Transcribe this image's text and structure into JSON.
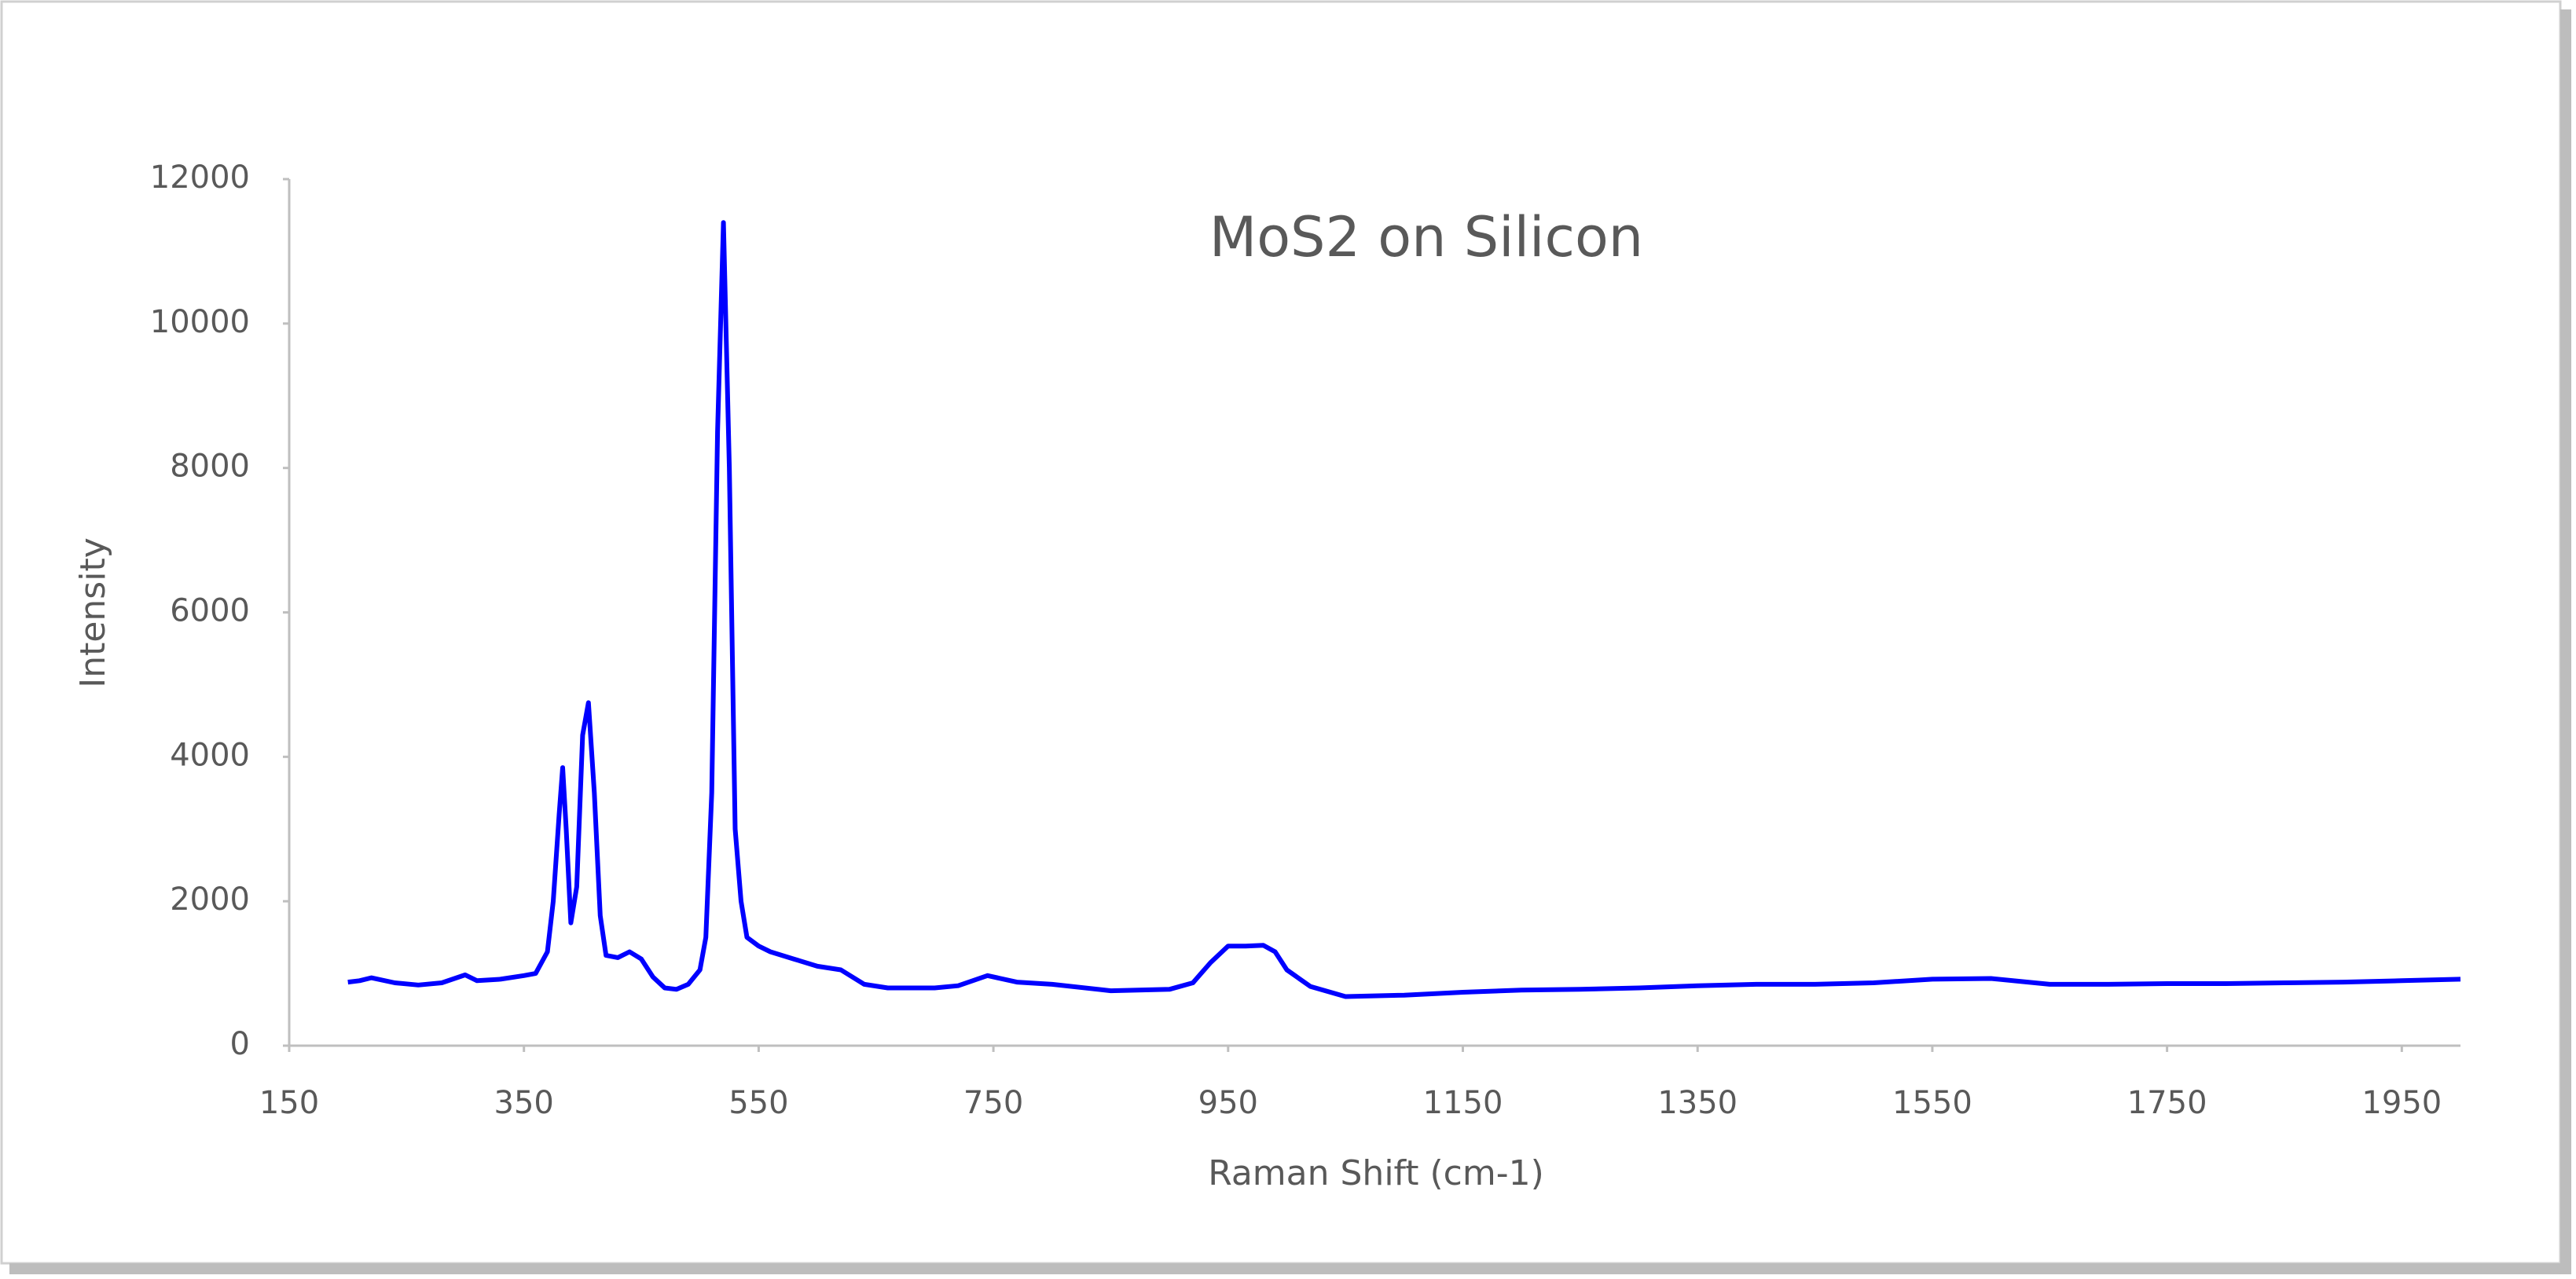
{
  "chart_data": {
    "type": "line",
    "title": "MoS2 on Silicon",
    "x_label": "Raman Shift (cm-1)",
    "y_label": "Intensity",
    "x": [
      200,
      210,
      220,
      240,
      260,
      280,
      300,
      310,
      330,
      350,
      360,
      370,
      375,
      380,
      383,
      386,
      390,
      395,
      400,
      405,
      410,
      415,
      420,
      430,
      440,
      450,
      460,
      470,
      480,
      490,
      500,
      505,
      510,
      515,
      520,
      525,
      530,
      535,
      540,
      550,
      560,
      580,
      600,
      620,
      640,
      660,
      700,
      720,
      745,
      770,
      800,
      850,
      900,
      920,
      935,
      950,
      965,
      980,
      990,
      1000,
      1020,
      1050,
      1100,
      1150,
      1200,
      1250,
      1300,
      1350,
      1400,
      1450,
      1500,
      1550,
      1600,
      1650,
      1700,
      1750,
      1800,
      1850,
      1900,
      1950,
      2000
    ],
    "series": [
      {
        "name": "MoS2 on Silicon",
        "color": "#0000ff",
        "values": [
          880,
          900,
          940,
          870,
          840,
          870,
          980,
          900,
          920,
          970,
          1000,
          1300,
          2000,
          3200,
          3850,
          3000,
          1700,
          2200,
          4300,
          4750,
          3500,
          1800,
          1250,
          1220,
          1300,
          1200,
          950,
          800,
          780,
          850,
          1050,
          1500,
          3500,
          8500,
          11400,
          8000,
          3000,
          2000,
          1500,
          1380,
          1300,
          1200,
          1100,
          1050,
          850,
          800,
          800,
          830,
          970,
          880,
          850,
          760,
          780,
          870,
          1150,
          1380,
          1380,
          1390,
          1300,
          1050,
          820,
          680,
          700,
          740,
          770,
          780,
          800,
          830,
          850,
          850,
          870,
          920,
          930,
          850,
          850,
          860,
          860,
          870,
          880,
          900,
          920
        ]
      }
    ],
    "xlim": [
      150,
      2000
    ],
    "xticks": [
      150,
      350,
      550,
      750,
      950,
      1150,
      1350,
      1550,
      1750,
      1950
    ],
    "ylim": [
      0,
      12000
    ],
    "yticks": [
      0,
      2000,
      4000,
      6000,
      8000,
      10000,
      12000
    ],
    "grid": false
  }
}
